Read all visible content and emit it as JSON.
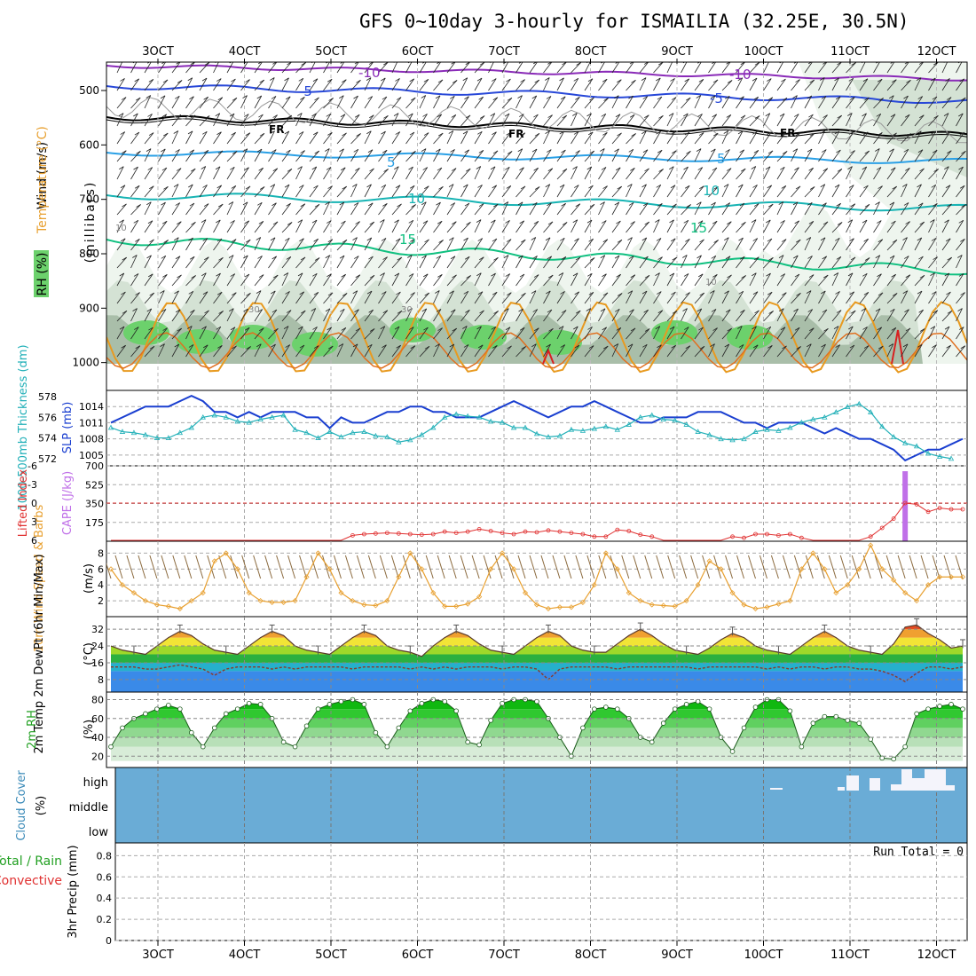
{
  "title": "GFS 0~10day 3-hourly for ISMAILIA (32.25E, 30.5N)",
  "dates": [
    "3OCT",
    "4OCT",
    "5OCT",
    "6OCT",
    "7OCT",
    "8OCT",
    "9OCT",
    "10OCT",
    "11OCT",
    "12OCT"
  ],
  "colors": {
    "rh_light": "#eef5ee",
    "rh_mid": "#d4e2d4",
    "rh_dark": "#a9bea9",
    "rh_green": "#6cd16c",
    "temp_purple": "#8a2bb8",
    "temp_blue": "#2848d8",
    "temp_sky": "#2aa0e6",
    "temp_teal": "#18b4b4",
    "temp_green": "#10c080",
    "temp_orange": "#e89a20",
    "temp_red": "#d82020",
    "freezing": "#000000",
    "slp": "#1a3fd0",
    "thickness": "#22b0b8",
    "cape": "#c070e8",
    "lifted": "#e03030",
    "wind_speed": "#e8a030",
    "wind_barb": "#8b6a3e",
    "cloud_bg": "#6aacd6",
    "cloud_high": "#f4f4fb"
  },
  "panels": {
    "upper": {
      "ylabels": [
        "Wind (m/s)",
        "Temperature (°C)",
        "RH (%)"
      ],
      "axis_title": "(millibars)",
      "pressure_ticks": [
        "500",
        "600",
        "700",
        "800",
        "900",
        "1000"
      ],
      "contour_labels": {
        "neg10": "-10",
        "neg5": "-5",
        "fr": "FR",
        "t5": "5",
        "t10": "10",
        "t15": "15",
        "rh30": "30",
        "rh10": "10"
      }
    },
    "slp": {
      "label_thick": "1000-500mb Thickness (dm)",
      "label_slp": "SLP (mb)",
      "thick_ticks": [
        "578",
        "576",
        "574",
        "572"
      ],
      "slp_ticks": [
        "1014",
        "1011",
        "1008",
        "1005"
      ]
    },
    "cape": {
      "label_li": "Lifted Index",
      "label_cape": "CAPE (J/kg)",
      "li_ticks": [
        "-6",
        "-3",
        "0",
        "3",
        "6"
      ],
      "cape_ticks": [
        "700",
        "525",
        "350",
        "175"
      ]
    },
    "wind10": {
      "label": "10m Wind Speed & Barbs",
      "unit": "(m/s)",
      "ticks": [
        "8",
        "6",
        "4",
        "2"
      ]
    },
    "temp2m": {
      "label": "2m Temp 2m DewPt (6hr Min/Max)",
      "unit": "(°C)",
      "ticks": [
        "32",
        "24",
        "16",
        "8"
      ]
    },
    "rh2m": {
      "label": "2m RH",
      "unit": "(%)",
      "ticks": [
        "80",
        "60",
        "40",
        "20"
      ]
    },
    "cloud": {
      "label": "Cloud Cover",
      "unit": "(%)",
      "levels": [
        "high",
        "middle",
        "low"
      ]
    },
    "precip": {
      "label_total": "Total / Rain",
      "label_conv": "Convective",
      "axis_title": "3hr Precip (mm)",
      "ticks": [
        "0.8",
        "0.6",
        "0.4",
        "0.2",
        "0"
      ],
      "run_total": "Run Total = 0"
    }
  },
  "chart_data": [
    {
      "type": "line",
      "name": "SLP",
      "unit": "mb",
      "x_step_hours": 3,
      "start": "3OCT 00Z",
      "values": [
        1011,
        1012,
        1013,
        1014,
        1014,
        1014,
        1015,
        1016,
        1015,
        1013,
        1013,
        1012,
        1013,
        1012,
        1013,
        1013,
        1013,
        1012,
        1012,
        1010,
        1012,
        1011,
        1011,
        1012,
        1013,
        1013,
        1014,
        1014,
        1013,
        1013,
        1012,
        1012,
        1012,
        1013,
        1014,
        1015,
        1014,
        1013,
        1012,
        1013,
        1014,
        1014,
        1015,
        1014,
        1013,
        1012,
        1011,
        1011,
        1012,
        1012,
        1012,
        1013,
        1013,
        1013,
        1012,
        1011,
        1011,
        1010,
        1011,
        1011,
        1011,
        1010,
        1009,
        1010,
        1009,
        1008,
        1008,
        1007,
        1006,
        1004,
        1005,
        1006,
        1006,
        1007,
        1008
      ]
    },
    {
      "type": "line",
      "name": "1000-500mb Thickness",
      "unit": "dm",
      "values": [
        575,
        574.6,
        574.5,
        574.3,
        574.0,
        574.0,
        574.5,
        575,
        576,
        576.2,
        576,
        575.6,
        575.5,
        575.8,
        576,
        576.2,
        574.8,
        574.5,
        574.0,
        574.6,
        574.1,
        574.5,
        574.6,
        574.2,
        574.1,
        573.6,
        573.8,
        574.3,
        575,
        576,
        576.3,
        576.1,
        576,
        575.6,
        575.5,
        575,
        575,
        574.4,
        574.1,
        574.2,
        574.8,
        574.7,
        574.9,
        575.1,
        574.8,
        575.3,
        576,
        576.2,
        575.8,
        575.7,
        575.3,
        574.6,
        574.3,
        573.9,
        573.8,
        573.9,
        574.6,
        574.8,
        574.7,
        575.0,
        575.5,
        575.8,
        576,
        576.5,
        577,
        577.3,
        576.5,
        575.1,
        574.1,
        573.5,
        573.2,
        572.5,
        572.2,
        572.0
      ]
    },
    {
      "type": "line",
      "name": "Lifted Index",
      "values": [
        6,
        6,
        6,
        6,
        6,
        6,
        6,
        6,
        6,
        6,
        6,
        6,
        6,
        6,
        6,
        6,
        6,
        6,
        6,
        6,
        6,
        5.2,
        5.0,
        4.9,
        4.8,
        4.9,
        5.0,
        5.1,
        5.0,
        4.6,
        4.8,
        4.6,
        4.2,
        4.5,
        4.8,
        5.0,
        4.6,
        4.7,
        4.4,
        4.6,
        4.8,
        5.0,
        5.4,
        5.4,
        4.3,
        4.5,
        5.1,
        5.4,
        6,
        6,
        6,
        6,
        6,
        6,
        5.4,
        5.6,
        5.0,
        5.0,
        5.2,
        5.0,
        5.6,
        6,
        6,
        6,
        6,
        6,
        5.4,
        4.0,
        2.5,
        0.0,
        0.2,
        1.4,
        0.8,
        1.0,
        1.0
      ]
    },
    {
      "type": "bar",
      "name": "CAPE",
      "unit": "J/kg",
      "values": [
        0,
        0,
        0,
        0,
        0,
        0,
        0,
        0,
        0,
        0,
        0,
        0,
        0,
        0,
        0,
        0,
        0,
        0,
        0,
        0,
        0,
        0,
        0,
        0,
        0,
        0,
        0,
        0,
        0,
        0,
        0,
        0,
        0,
        0,
        0,
        0,
        0,
        0,
        0,
        0,
        0,
        0,
        0,
        0,
        0,
        0,
        0,
        0,
        0,
        0,
        0,
        0,
        0,
        0,
        0,
        0,
        0,
        0,
        0,
        0,
        0,
        0,
        0,
        0,
        0,
        0,
        0,
        0,
        0,
        650,
        0,
        0,
        0,
        0,
        0
      ]
    },
    {
      "type": "line",
      "name": "10m Wind Speed",
      "unit": "m/s",
      "values": [
        6,
        4,
        3,
        2,
        1.5,
        1.3,
        1,
        2,
        3,
        7,
        8,
        6,
        3,
        2,
        1.8,
        1.8,
        2,
        5,
        8,
        6,
        3,
        2,
        1.5,
        1.4,
        2,
        5,
        8,
        6,
        3,
        1.3,
        1.3,
        1.6,
        2.5,
        6,
        8,
        6,
        3,
        1.5,
        1,
        1.2,
        1.2,
        1.8,
        4,
        8,
        6,
        3,
        2,
        1.5,
        1.4,
        1.3,
        2,
        4,
        7,
        6,
        3,
        1.5,
        1,
        1.2,
        1.6,
        2,
        6,
        8,
        6,
        3,
        4,
        6,
        9,
        6,
        4.6,
        3,
        2,
        4,
        5,
        5,
        5
      ]
    },
    {
      "type": "area",
      "name": "2m Temp",
      "unit": "°C",
      "values": [
        24,
        22,
        21,
        20,
        24,
        28,
        31,
        29,
        25,
        22,
        21,
        20,
        24,
        28,
        31,
        29,
        24,
        22,
        21,
        20,
        24,
        28,
        31,
        29,
        24,
        22,
        21,
        19,
        24,
        28,
        31,
        29,
        25,
        22,
        21,
        20,
        24,
        28,
        31,
        29,
        24,
        22,
        21,
        21,
        25,
        29,
        32,
        29,
        25,
        22,
        21,
        20,
        23,
        27,
        30,
        28,
        24,
        22,
        21,
        20,
        24,
        28,
        31,
        28,
        24,
        22,
        21,
        20,
        25,
        33,
        34,
        30,
        27,
        23,
        24
      ]
    },
    {
      "type": "line",
      "name": "2m DewPt",
      "unit": "°C",
      "values": [
        14,
        14,
        14,
        13,
        13,
        14,
        15,
        14,
        13,
        10,
        13,
        14,
        14,
        14,
        13,
        14,
        13,
        14,
        14,
        14,
        14,
        13,
        14,
        14,
        14,
        14,
        13,
        14,
        13,
        14,
        13,
        14,
        14,
        14,
        13,
        14,
        14,
        13,
        8,
        13,
        14,
        14,
        14,
        14,
        13,
        14,
        14,
        14,
        14,
        14,
        14,
        13,
        14,
        14,
        14,
        14,
        14,
        13,
        14,
        13,
        14,
        14,
        13,
        14,
        14,
        13,
        13,
        12,
        10,
        7,
        11,
        14,
        14,
        13,
        14
      ]
    },
    {
      "type": "area",
      "name": "2m RH",
      "unit": "%",
      "values": [
        30,
        50,
        60,
        65,
        70,
        74,
        70,
        45,
        30,
        50,
        65,
        70,
        76,
        75,
        60,
        35,
        30,
        52,
        70,
        75,
        78,
        80,
        75,
        45,
        30,
        50,
        68,
        76,
        80,
        78,
        68,
        35,
        32,
        58,
        76,
        80,
        80,
        78,
        60,
        40,
        20,
        50,
        70,
        72,
        70,
        60,
        40,
        35,
        55,
        70,
        75,
        78,
        70,
        40,
        25,
        50,
        72,
        80,
        80,
        68,
        30,
        55,
        62,
        62,
        58,
        55,
        38,
        18,
        17,
        30,
        65,
        70,
        73,
        75,
        70
      ]
    },
    {
      "type": "area",
      "name": "Cloud Cover (high)",
      "unit": "%",
      "values": [
        0,
        0,
        0,
        0,
        0,
        0,
        0,
        0,
        0,
        0,
        0,
        0,
        0,
        0,
        0,
        0,
        0,
        0,
        0,
        0,
        0,
        0,
        0,
        0,
        0,
        0,
        0,
        0,
        0,
        0,
        0,
        0,
        0,
        0,
        0,
        0,
        0,
        0,
        0,
        0,
        0,
        0,
        0,
        0,
        0,
        0,
        0,
        0,
        0,
        0,
        0,
        0,
        0,
        0,
        0,
        0,
        0,
        0,
        0,
        0,
        0,
        0,
        0,
        0,
        0,
        0,
        15,
        0,
        0,
        0,
        0,
        0,
        0,
        0,
        0
      ]
    },
    {
      "type": "bar",
      "name": "3hr Precip",
      "unit": "mm",
      "ylim": [
        0,
        0.9
      ],
      "values": []
    }
  ]
}
